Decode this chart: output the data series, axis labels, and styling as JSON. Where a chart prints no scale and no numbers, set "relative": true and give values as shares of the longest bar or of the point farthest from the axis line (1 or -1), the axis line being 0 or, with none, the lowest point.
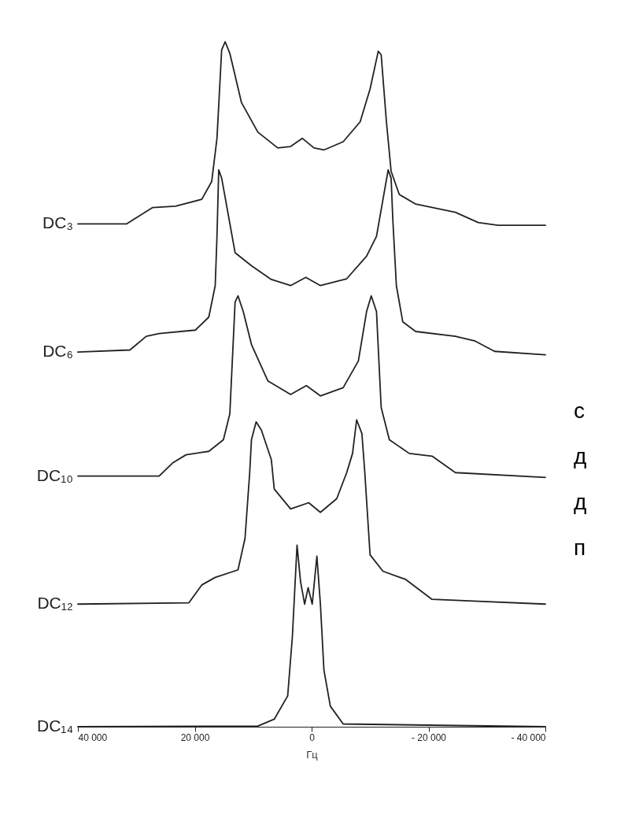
{
  "chart_data": {
    "type": "line",
    "relative": true,
    "xlabel": "Гц",
    "xlim": [
      40000,
      -40000
    ],
    "xticks": [
      {
        "value": 40000,
        "label": "40 000"
      },
      {
        "value": 20000,
        "label": "20 000"
      },
      0,
      {
        "value": -20000,
        "label": "- 20 000"
      },
      {
        "value": -40000,
        "label": "- 40 000"
      }
    ],
    "grid": false,
    "legend": false,
    "marker": "none",
    "line_style": "solid",
    "annotations": [
      "с",
      "д",
      "д",
      "п"
    ],
    "series": [
      {
        "name": "DC₃",
        "color": "#222222",
        "x": [
          40000,
          31700,
          27200,
          23300,
          18800,
          17100,
          16200,
          15400,
          14800,
          14000,
          12000,
          9200,
          5800,
          3600,
          1600,
          -400,
          -2100,
          -5400,
          -8300,
          -10000,
          -11400,
          -11900,
          -12800,
          -13600,
          -15000,
          -17800,
          -24600,
          -28500,
          -31900,
          -40000
        ],
        "values": [
          0.734,
          0.734,
          0.758,
          0.76,
          0.77,
          0.796,
          0.859,
          0.988,
          1.0,
          0.983,
          0.911,
          0.868,
          0.845,
          0.847,
          0.859,
          0.845,
          0.842,
          0.854,
          0.883,
          0.931,
          0.986,
          0.981,
          0.883,
          0.811,
          0.777,
          0.763,
          0.751,
          0.736,
          0.732,
          0.732
        ]
      },
      {
        "name": "DC₆",
        "color": "#222222",
        "x": [
          40000,
          31100,
          28300,
          26100,
          19900,
          17600,
          16500,
          16200,
          15900,
          15400,
          13100,
          10300,
          6900,
          3600,
          1000,
          -1500,
          -6000,
          -9400,
          -11100,
          -13100,
          -13600,
          -13900,
          -14500,
          -15600,
          -17800,
          -24600,
          -28000,
          -31300,
          -40000
        ],
        "values": [
          0.547,
          0.55,
          0.57,
          0.574,
          0.579,
          0.598,
          0.644,
          0.716,
          0.813,
          0.801,
          0.692,
          0.673,
          0.653,
          0.644,
          0.656,
          0.644,
          0.654,
          0.687,
          0.716,
          0.813,
          0.801,
          0.739,
          0.644,
          0.591,
          0.577,
          0.57,
          0.563,
          0.548,
          0.543
        ]
      },
      {
        "name": "DC₁₀",
        "color": "#222222",
        "x": [
          40000,
          26100,
          23800,
          21500,
          17600,
          15100,
          14000,
          13100,
          12600,
          11700,
          10300,
          7500,
          3600,
          900,
          -1500,
          -5400,
          -8000,
          -9400,
          -10200,
          -11100,
          -11900,
          -13300,
          -16700,
          -20600,
          -24600,
          -40000
        ],
        "values": [
          0.366,
          0.366,
          0.385,
          0.397,
          0.402,
          0.419,
          0.457,
          0.62,
          0.629,
          0.606,
          0.558,
          0.505,
          0.485,
          0.498,
          0.483,
          0.495,
          0.534,
          0.606,
          0.629,
          0.606,
          0.466,
          0.419,
          0.399,
          0.395,
          0.371,
          0.364
        ]
      },
      {
        "name": "DC₁₂",
        "color": "#222222",
        "x": [
          40000,
          21000,
          18800,
          16500,
          12600,
          11400,
          10600,
          10300,
          9500,
          8600,
          6900,
          6400,
          3600,
          500,
          -1500,
          -4300,
          -6000,
          -7000,
          -7700,
          -8600,
          -9100,
          -10000,
          -12200,
          -16100,
          -20600,
          -40000
        ],
        "values": [
          0.179,
          0.181,
          0.207,
          0.218,
          0.229,
          0.275,
          0.371,
          0.419,
          0.445,
          0.433,
          0.39,
          0.347,
          0.318,
          0.327,
          0.313,
          0.333,
          0.371,
          0.399,
          0.448,
          0.428,
          0.371,
          0.251,
          0.227,
          0.215,
          0.186,
          0.179
        ]
      },
      {
        "name": "DC₁₄",
        "color": "#222222",
        "x": [
          40000,
          9200,
          6400,
          4100,
          3300,
          2500,
          1900,
          1200,
          600,
          -100,
          -900,
          -1500,
          -2100,
          -3200,
          -5400,
          -40000
        ],
        "values": [
          0,
          0.001,
          0.011,
          0.045,
          0.131,
          0.265,
          0.212,
          0.179,
          0.203,
          0.179,
          0.249,
          0.179,
          0.083,
          0.03,
          0.004,
          0
        ]
      }
    ]
  }
}
